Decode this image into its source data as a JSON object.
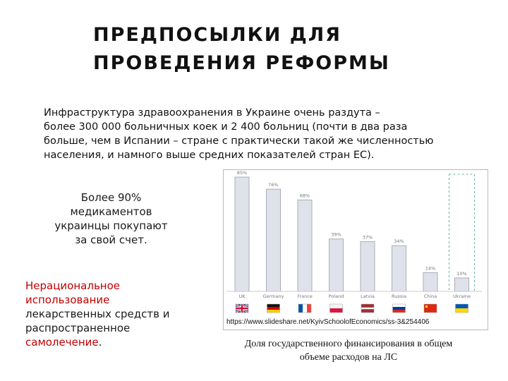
{
  "slide": {
    "title_line1": "ПРЕДПОСЫЛКИ ДЛЯ",
    "title_line2": "ПРОВЕДЕНИЯ  РЕФОРМЫ",
    "intro_line1": "Инфраструктура здравоохранения в Украине очень раздута –",
    "intro_line2": "более 300 000 больничных коек и 2 400 больниц (почти в два раза",
    "intro_line3": "больше, чем в Испании – стране с практически такой же численностью",
    "intro_line4": "населения, и намного выше средних показателей стран ЕС).",
    "stat_line1": "Более 90%",
    "stat_line2": "медикаментов",
    "stat_line3": "украинцы покупают",
    "stat_line4": "за свой счет",
    "stat_line4_end": ".",
    "irr_line1": "Нерациональное",
    "irr_line2": "использование",
    "irr_line3": "лекарственных средств и",
    "irr_line4": "распространенное",
    "irr_line5": "самолечение",
    "irr_line5_end": ".",
    "source_url": "https://www.slideshare.net/KyivSchoolofEconomics/ss-3&254406",
    "caption_line1": "Доля государственного финансирования в общем",
    "caption_line2": "объеме расходов на ЛС",
    "colors": {
      "bar": "#dfe2ea",
      "bar_edge": "#a9aebb",
      "label": "#777777",
      "red": "#c00000"
    }
  },
  "chart_data": {
    "type": "bar",
    "categories": [
      "UK",
      "Germany",
      "France",
      "Poland",
      "Latvia",
      "Russia",
      "China",
      "Ukraine"
    ],
    "values": [
      85,
      76,
      68,
      39,
      37,
      34,
      14,
      10
    ],
    "value_labels": [
      "85%",
      "76%",
      "68%",
      "39%",
      "37%",
      "34%",
      "14%",
      "10%"
    ],
    "ylim": [
      0,
      85
    ],
    "highlight": "Ukraine",
    "flags": [
      "uk-flag",
      "germany-flag",
      "france-flag",
      "poland-flag",
      "latvia-flag",
      "russia-flag",
      "china-flag",
      "ukraine-flag"
    ],
    "grid": false,
    "title": "",
    "xlabel": "",
    "ylabel": ""
  }
}
